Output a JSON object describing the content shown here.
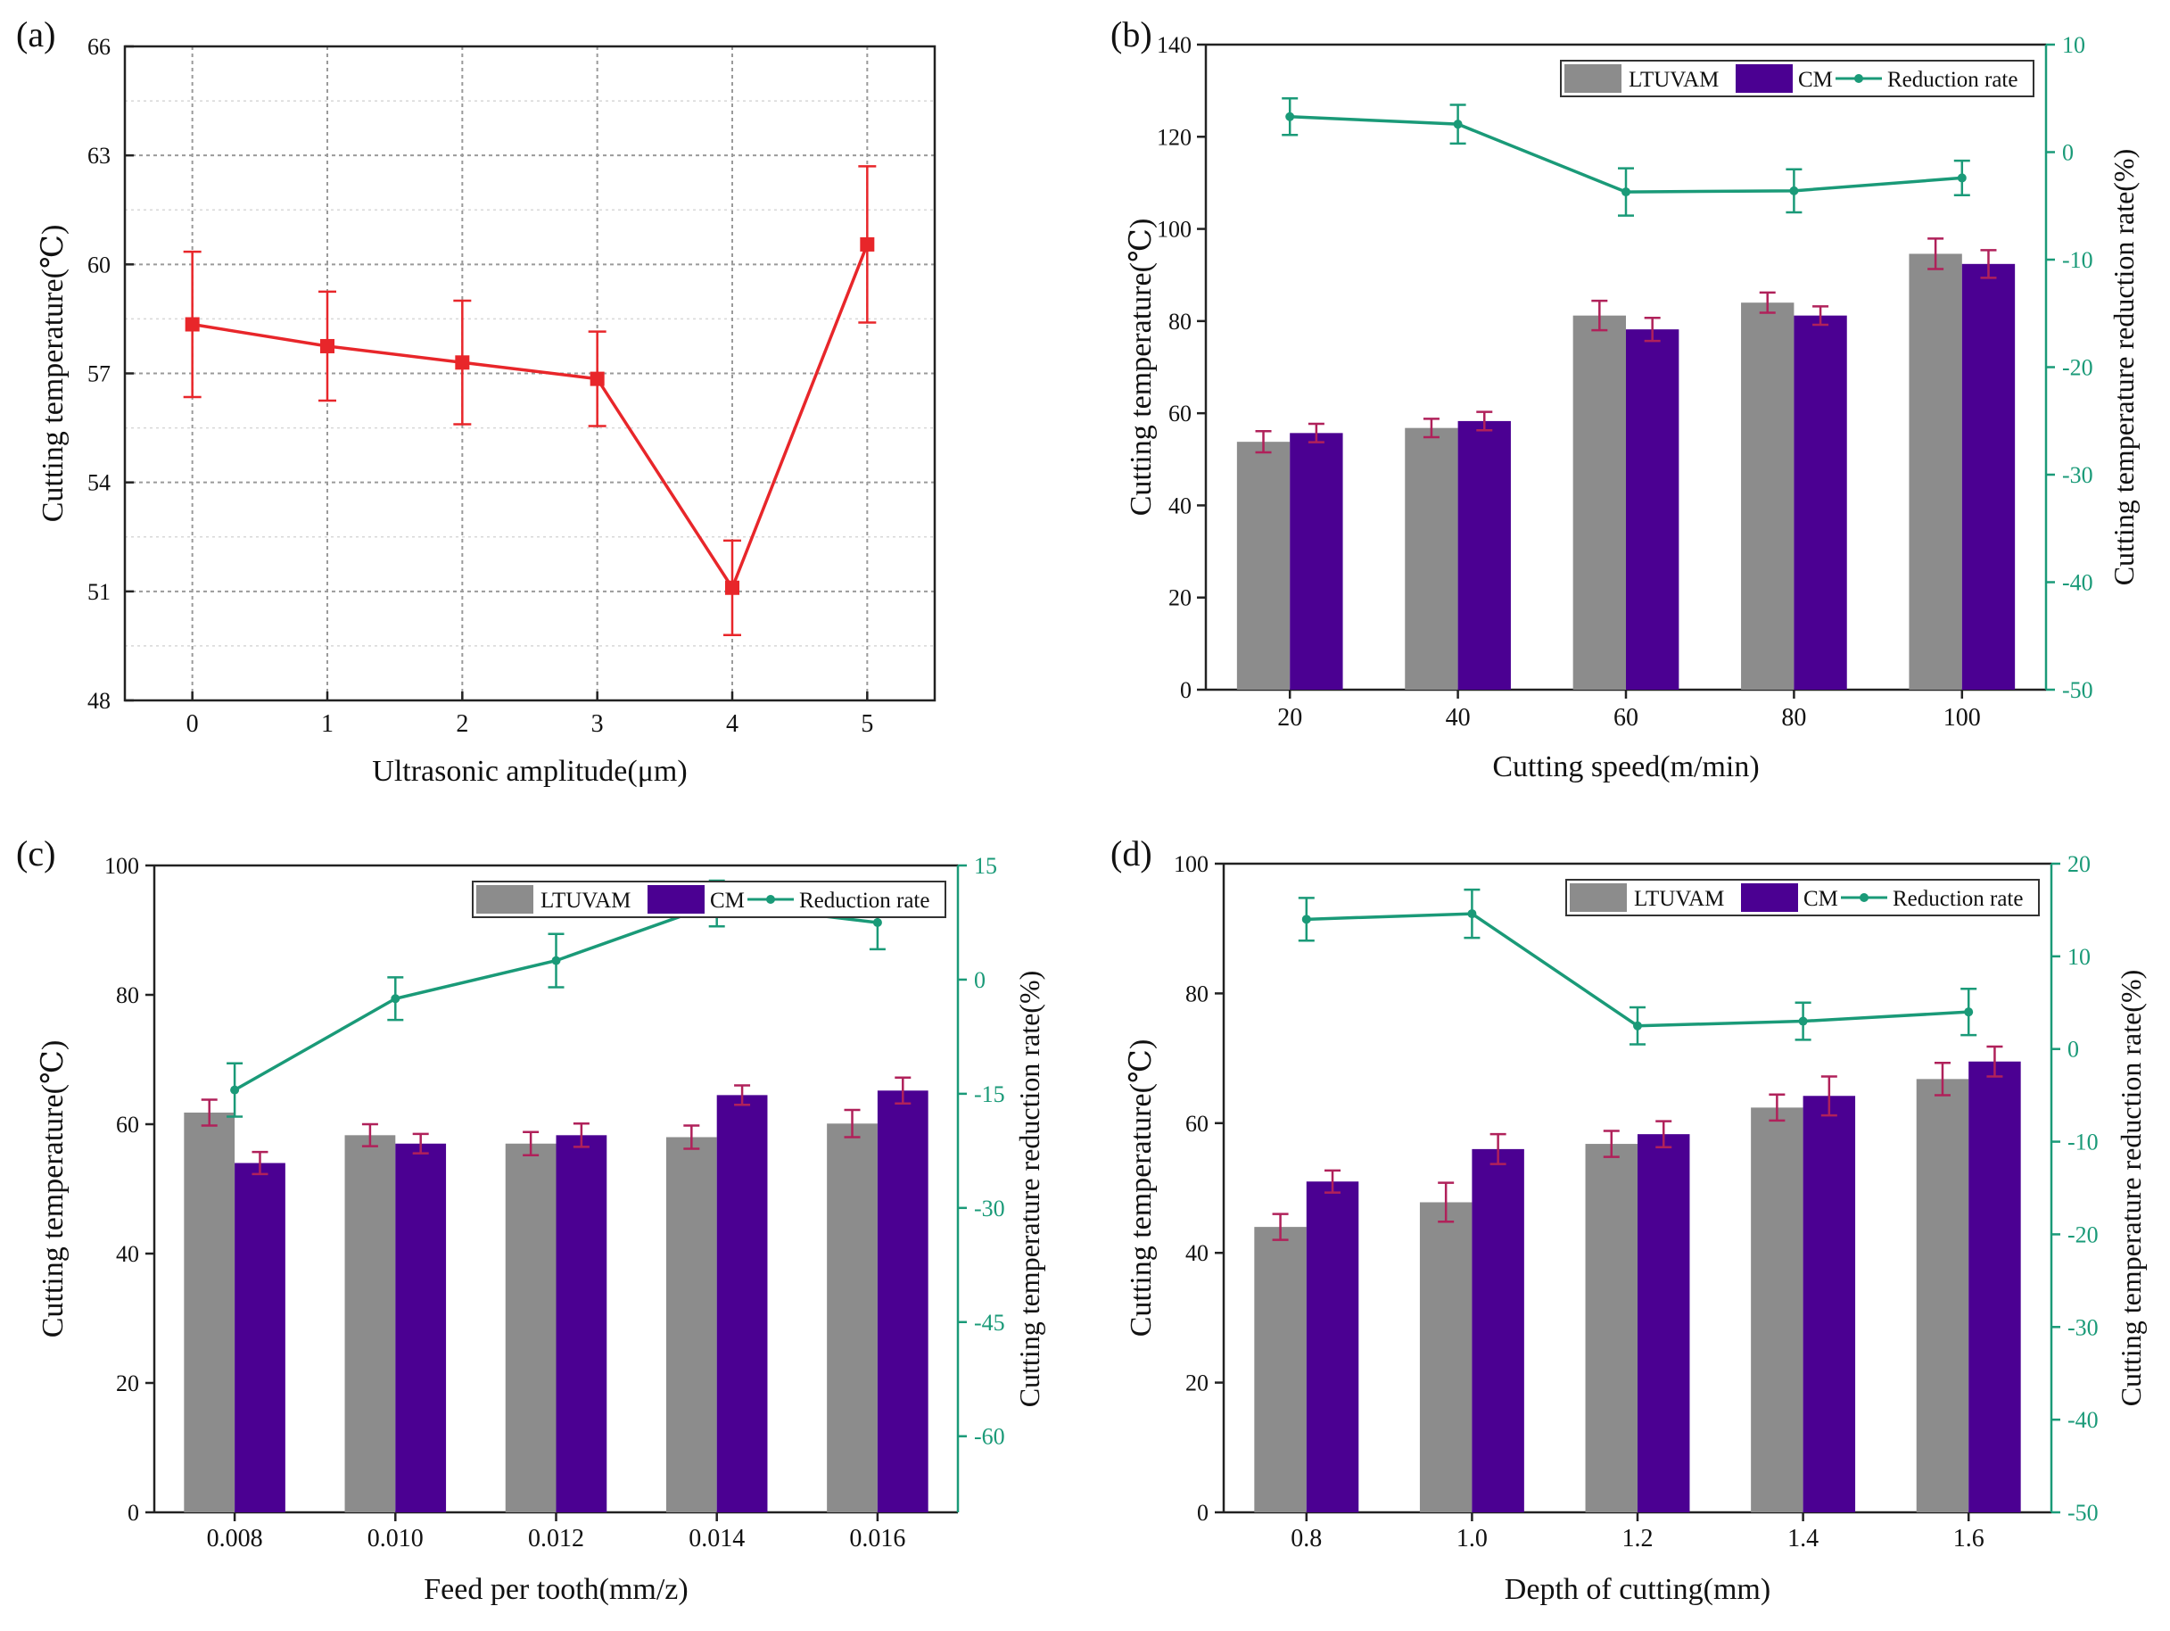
{
  "colors": {
    "line_a": "#e8262a",
    "ltuvam": "#8c8c8c",
    "cm": "#4b0092",
    "reduction": "#1a9a78",
    "error_bar": "#b0215a"
  },
  "chart_data": [
    {
      "id": "a",
      "panel_label": "(a)",
      "type": "line",
      "x": [
        0,
        1,
        2,
        3,
        4,
        5
      ],
      "x_tick_labels": [
        "0",
        "1",
        "2",
        "3",
        "4",
        "5"
      ],
      "values": [
        58.35,
        57.75,
        57.3,
        56.85,
        51.1,
        60.55
      ],
      "errors": [
        2.0,
        1.5,
        1.7,
        1.3,
        1.3,
        2.15
      ],
      "xlabel": "Ultrasonic amplitude(μm)",
      "ylabel": "Cutting temperature(℃)",
      "xlim": [
        -0.5,
        5.5
      ],
      "ylim": [
        48,
        66
      ],
      "y_ticks": [
        48,
        51,
        54,
        57,
        60,
        63,
        66
      ],
      "y_tick_labels": [
        "48",
        "51",
        "54",
        "57",
        "60",
        "63",
        "66"
      ],
      "grid": true
    },
    {
      "id": "b",
      "panel_label": "(b)",
      "type": "bar",
      "categories": [
        "20",
        "40",
        "60",
        "80",
        "100"
      ],
      "series": [
        {
          "name": "LTUVAM",
          "values": [
            53.8,
            56.8,
            81.2,
            84.0,
            94.6
          ],
          "errors": [
            2.3,
            2.0,
            3.2,
            2.2,
            3.3
          ]
        },
        {
          "name": "CM",
          "values": [
            55.7,
            58.3,
            78.2,
            81.2,
            92.4
          ],
          "errors": [
            2.0,
            2.0,
            2.5,
            2.0,
            3.0
          ]
        }
      ],
      "line_series": {
        "name": "Reduction rate",
        "values": [
          3.3,
          2.6,
          -3.7,
          -3.6,
          -2.4
        ],
        "errors": [
          1.7,
          1.8,
          2.2,
          2.0,
          1.6
        ]
      },
      "xlabel": "Cutting speed(m/min)",
      "ylabel": "Cutting temperature(℃)",
      "ylabel_right": "Cutting temperature reduction rate(%)",
      "ylim": [
        0,
        140
      ],
      "y_ticks": [
        0,
        20,
        40,
        60,
        80,
        100,
        120,
        140
      ],
      "y_tick_labels": [
        "0",
        "20",
        "40",
        "60",
        "80",
        "100",
        "120",
        "140"
      ],
      "ylim_right": [
        -50,
        10
      ],
      "y_ticks_right": [
        -50,
        -40,
        -30,
        -20,
        -10,
        0,
        10
      ],
      "y_tick_labels_right": [
        "-50",
        "-40",
        "-30",
        "-20",
        "-10",
        "0",
        "10"
      ],
      "legend": [
        "LTUVAM",
        "CM",
        "Reduction rate"
      ],
      "legend_position": "top-right"
    },
    {
      "id": "c",
      "panel_label": "(c)",
      "type": "bar",
      "categories": [
        "0.008",
        "0.010",
        "0.012",
        "0.014",
        "0.016"
      ],
      "series": [
        {
          "name": "LTUVAM",
          "values": [
            61.8,
            58.3,
            57.0,
            58.0,
            60.1
          ],
          "errors": [
            2.0,
            1.7,
            1.8,
            1.8,
            2.1
          ]
        },
        {
          "name": "CM",
          "values": [
            54.0,
            57.0,
            58.3,
            64.5,
            65.2
          ],
          "errors": [
            1.7,
            1.5,
            1.8,
            1.5,
            2.0
          ]
        }
      ],
      "line_series": {
        "name": "Reduction rate",
        "values": [
          -14.5,
          -2.5,
          2.5,
          10.0,
          7.5
        ],
        "errors": [
          3.5,
          2.8,
          3.5,
          3.0,
          3.5
        ]
      },
      "xlabel": "Feed per tooth(mm/z)",
      "ylabel": "Cutting temperature(℃)",
      "ylabel_right": "Cutting temperature reduction rate(%)",
      "ylim": [
        0,
        100
      ],
      "y_ticks": [
        0,
        20,
        40,
        60,
        80,
        100
      ],
      "y_tick_labels": [
        "0",
        "20",
        "40",
        "60",
        "80",
        "100"
      ],
      "ylim_right": [
        -70,
        15
      ],
      "y_ticks_right": [
        -60,
        -45,
        -30,
        -15,
        0,
        15
      ],
      "y_tick_labels_right": [
        "-60",
        "-45",
        "-30",
        "-15",
        "0",
        "15"
      ],
      "legend": [
        "LTUVAM",
        "CM",
        "Reduction rate"
      ],
      "legend_position": "top-right"
    },
    {
      "id": "d",
      "panel_label": "(d)",
      "type": "bar",
      "categories": [
        "0.8",
        "1.0",
        "1.2",
        "1.4",
        "1.6"
      ],
      "series": [
        {
          "name": "LTUVAM",
          "values": [
            44.0,
            47.8,
            56.8,
            62.4,
            66.8
          ],
          "errors": [
            2.0,
            3.0,
            2.0,
            2.0,
            2.5
          ]
        },
        {
          "name": "CM",
          "values": [
            51.0,
            56.0,
            58.3,
            64.2,
            69.5
          ],
          "errors": [
            1.7,
            2.3,
            2.0,
            3.0,
            2.3
          ]
        }
      ],
      "line_series": {
        "name": "Reduction rate",
        "values": [
          14.0,
          14.6,
          2.5,
          3.0,
          4.0
        ],
        "errors": [
          2.3,
          2.6,
          2.0,
          2.0,
          2.5
        ]
      },
      "xlabel": "Depth of cutting(mm)",
      "ylabel": "Cutting temperature(℃)",
      "ylabel_right": "Cutting temperature reduction rate(%)",
      "ylim": [
        0,
        100
      ],
      "y_ticks": [
        0,
        20,
        40,
        60,
        80,
        100
      ],
      "y_tick_labels": [
        "0",
        "20",
        "40",
        "60",
        "80",
        "100"
      ],
      "ylim_right": [
        -50,
        20
      ],
      "y_ticks_right": [
        -50,
        -40,
        -30,
        -20,
        -10,
        0,
        10,
        20
      ],
      "y_tick_labels_right": [
        "-50",
        "-40",
        "-30",
        "-20",
        "-10",
        "0",
        "10",
        "20"
      ],
      "legend": [
        "LTUVAM",
        "CM",
        "Reduction rate"
      ],
      "legend_position": "top-right"
    }
  ]
}
